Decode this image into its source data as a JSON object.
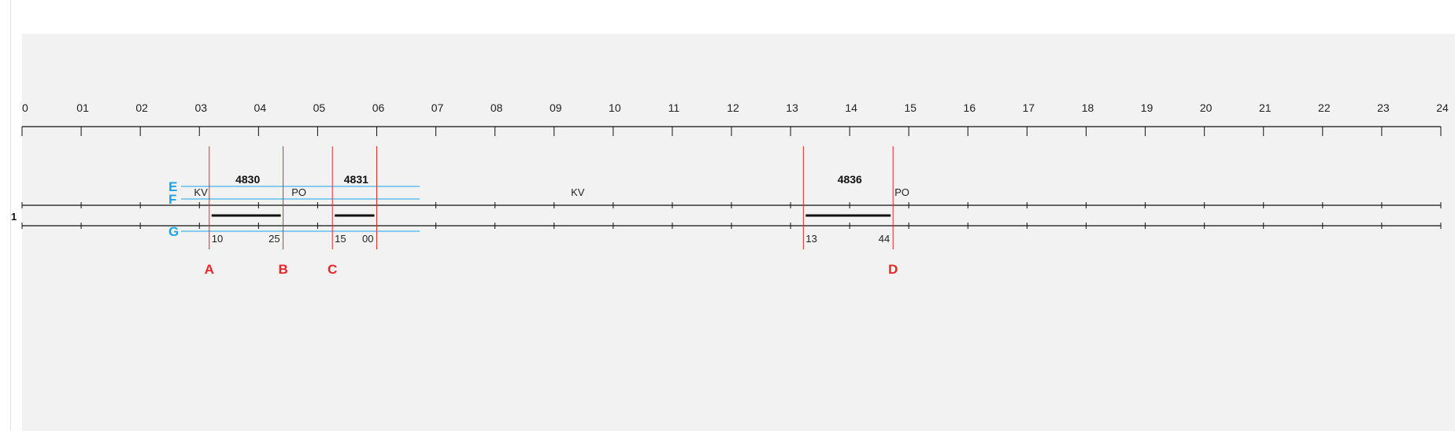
{
  "hour_labels": [
    "0",
    "01",
    "02",
    "03",
    "04",
    "05",
    "06",
    "07",
    "08",
    "09",
    "10",
    "11",
    "12",
    "13",
    "14",
    "15",
    "16",
    "17",
    "18",
    "19",
    "20",
    "21",
    "22",
    "23",
    "24"
  ],
  "row_number": "1",
  "colors": {
    "canvas_bg": "#f2f2f2",
    "red_marker": "#e8262b",
    "blue_marker": "#1aa3e8",
    "line": "#111111"
  },
  "trains": [
    {
      "number": "4830",
      "from": "KV",
      "to": "PO",
      "dep_hour": 3.1667,
      "arr_hour": 4.4167,
      "dep_min": "10",
      "arr_min": "25"
    },
    {
      "number": "4831",
      "from": "",
      "to": "",
      "dep_hour": 5.25,
      "arr_hour": 6.0,
      "dep_min": "15",
      "arr_min": "00"
    },
    {
      "number": "4836",
      "from": "",
      "to": "PO",
      "dep_hour": 13.2167,
      "arr_hour": 14.7333,
      "dep_min": "13",
      "arr_min": "44"
    }
  ],
  "extra_station": {
    "label": "KV",
    "hour": 9.4
  },
  "red_markers": [
    {
      "label": "A",
      "hour": 3.1667
    },
    {
      "label": "B",
      "hour": 4.4167
    },
    {
      "label": "C",
      "hour": 5.25
    },
    {
      "label": "D",
      "hour": 14.7333
    }
  ],
  "blue_markers": [
    "E",
    "F",
    "G"
  ]
}
